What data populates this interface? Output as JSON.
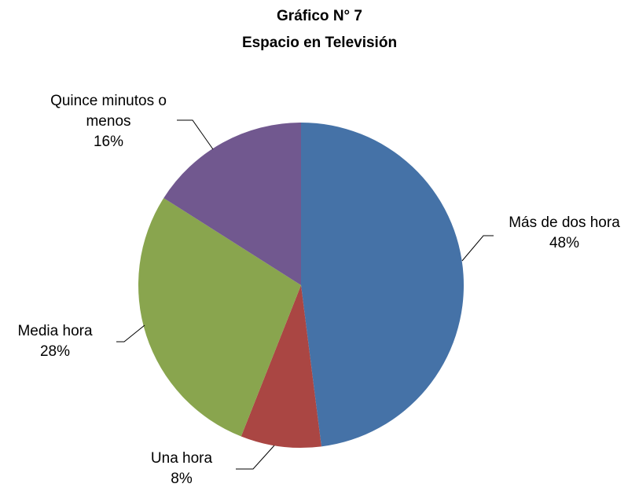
{
  "chart_data": {
    "type": "pie",
    "title": "Gráfico N° 7",
    "subtitle": "Espacio en Televisión",
    "categories": [
      "Más de dos hora",
      "Una hora",
      "Media hora",
      "Quince minutos o menos"
    ],
    "values": [
      48,
      8,
      28,
      16
    ],
    "value_labels": [
      "48%",
      "8%",
      "28%",
      "16%"
    ],
    "colors": [
      "#4572a7",
      "#aa4643",
      "#89a54e",
      "#71588f"
    ]
  }
}
